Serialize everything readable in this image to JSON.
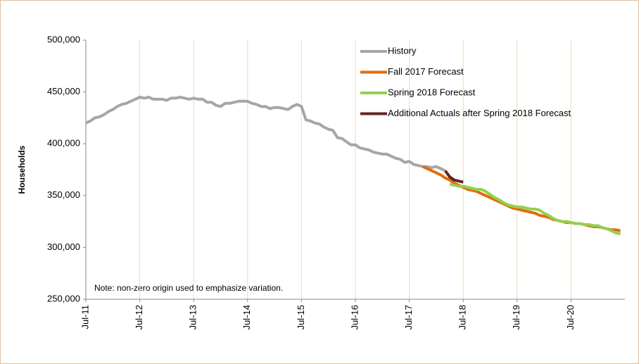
{
  "chart_data": {
    "type": "line",
    "y_label": "Households",
    "note": "Note: non-zero origin used to emphasize variation.",
    "categories": [
      "Jul-11",
      null,
      null,
      null,
      null,
      null,
      null,
      null,
      null,
      null,
      null,
      null,
      "Jul-12",
      null,
      null,
      null,
      null,
      null,
      null,
      null,
      null,
      null,
      null,
      null,
      "Jul-13",
      null,
      null,
      null,
      null,
      null,
      null,
      null,
      null,
      null,
      null,
      null,
      "Jul-14",
      null,
      null,
      null,
      null,
      null,
      null,
      null,
      null,
      null,
      null,
      null,
      "Jul-15",
      null,
      null,
      null,
      null,
      null,
      null,
      null,
      null,
      null,
      null,
      null,
      "Jul-16",
      null,
      null,
      null,
      null,
      null,
      null,
      null,
      null,
      null,
      null,
      null,
      "Jul-17",
      null,
      null,
      null,
      null,
      null,
      null,
      null,
      null,
      null,
      null,
      null,
      "Jul-18",
      null,
      null,
      null,
      null,
      null,
      null,
      null,
      null,
      null,
      null,
      null,
      "Jul-19",
      null,
      null,
      null,
      null,
      null,
      null,
      null,
      null,
      null,
      null,
      null,
      "Jul-20",
      null,
      null,
      null,
      null,
      null,
      null,
      null,
      null,
      null,
      null,
      null
    ],
    "series": [
      {
        "name": "History",
        "color": "#a6a6a6",
        "values": [
          420000,
          422000,
          425000,
          426000,
          428000,
          431000,
          433000,
          436000,
          438000,
          439000,
          441000,
          443000,
          445000,
          444000,
          445000,
          443000,
          443000,
          443000,
          442000,
          444000,
          444000,
          445000,
          444000,
          443000,
          444000,
          443000,
          443000,
          440000,
          440000,
          437000,
          436000,
          439000,
          439000,
          440000,
          441000,
          441000,
          441000,
          439000,
          438000,
          436000,
          436000,
          434000,
          435000,
          435000,
          434000,
          433000,
          436000,
          438000,
          436000,
          423000,
          422000,
          420000,
          419000,
          416000,
          414000,
          413000,
          406000,
          405000,
          402000,
          399000,
          399000,
          396000,
          395000,
          394000,
          392000,
          391000,
          390000,
          390000,
          388000,
          386000,
          385000,
          382000,
          383000,
          380000,
          379000,
          378000,
          378000,
          377000,
          378000,
          376000,
          374000,
          null,
          null,
          null,
          null,
          null,
          null,
          null,
          null,
          null,
          null,
          null,
          null,
          null,
          null,
          null,
          null,
          null,
          null,
          null,
          null,
          null,
          null,
          null,
          null,
          null,
          null,
          null,
          null,
          null,
          null,
          null,
          null,
          null,
          null,
          null,
          null,
          null,
          null,
          null
        ]
      },
      {
        "name": "Fall 2017 Forecast",
        "color": "#e36c0a",
        "values": [
          null,
          null,
          null,
          null,
          null,
          null,
          null,
          null,
          null,
          null,
          null,
          null,
          null,
          null,
          null,
          null,
          null,
          null,
          null,
          null,
          null,
          null,
          null,
          null,
          null,
          null,
          null,
          null,
          null,
          null,
          null,
          null,
          null,
          null,
          null,
          null,
          null,
          null,
          null,
          null,
          null,
          null,
          null,
          null,
          null,
          null,
          null,
          null,
          null,
          null,
          null,
          null,
          null,
          null,
          null,
          null,
          null,
          null,
          null,
          null,
          null,
          null,
          null,
          null,
          null,
          null,
          null,
          null,
          null,
          null,
          null,
          null,
          null,
          null,
          null,
          378000,
          376000,
          374000,
          372000,
          370000,
          367000,
          365000,
          362000,
          360000,
          358000,
          356000,
          355000,
          354000,
          352000,
          350000,
          348000,
          346000,
          344000,
          342000,
          340000,
          338000,
          337000,
          336000,
          335000,
          334000,
          333000,
          331000,
          330000,
          329000,
          327000,
          326000,
          325000,
          324000,
          324000,
          323000,
          323000,
          322000,
          321000,
          320000,
          320000,
          319000,
          318000,
          317000,
          317000,
          316000
        ]
      },
      {
        "name": "Spring 2018 Forecast",
        "color": "#92d050",
        "values": [
          null,
          null,
          null,
          null,
          null,
          null,
          null,
          null,
          null,
          null,
          null,
          null,
          null,
          null,
          null,
          null,
          null,
          null,
          null,
          null,
          null,
          null,
          null,
          null,
          null,
          null,
          null,
          null,
          null,
          null,
          null,
          null,
          null,
          null,
          null,
          null,
          null,
          null,
          null,
          null,
          null,
          null,
          null,
          null,
          null,
          null,
          null,
          null,
          null,
          null,
          null,
          null,
          null,
          null,
          null,
          null,
          null,
          null,
          null,
          null,
          null,
          null,
          null,
          null,
          null,
          null,
          null,
          null,
          null,
          null,
          null,
          null,
          null,
          null,
          null,
          null,
          null,
          null,
          null,
          null,
          null,
          361000,
          360000,
          359000,
          359000,
          358000,
          357000,
          356000,
          356000,
          354000,
          351000,
          348000,
          346000,
          343000,
          341000,
          340000,
          339000,
          339000,
          338000,
          337000,
          337000,
          336000,
          333000,
          331000,
          328000,
          326000,
          325000,
          325000,
          324000,
          323000,
          323000,
          322000,
          322000,
          321000,
          321000,
          319000,
          318000,
          316000,
          314000,
          313000
        ]
      },
      {
        "name": "Additional Actuals after Spring 2018 Forecast",
        "color": "#632523",
        "values": [
          null,
          null,
          null,
          null,
          null,
          null,
          null,
          null,
          null,
          null,
          null,
          null,
          null,
          null,
          null,
          null,
          null,
          null,
          null,
          null,
          null,
          null,
          null,
          null,
          null,
          null,
          null,
          null,
          null,
          null,
          null,
          null,
          null,
          null,
          null,
          null,
          null,
          null,
          null,
          null,
          null,
          null,
          null,
          null,
          null,
          null,
          null,
          null,
          null,
          null,
          null,
          null,
          null,
          null,
          null,
          null,
          null,
          null,
          null,
          null,
          null,
          null,
          null,
          null,
          null,
          null,
          null,
          null,
          null,
          null,
          null,
          null,
          null,
          null,
          null,
          null,
          null,
          null,
          null,
          null,
          374000,
          368000,
          365000,
          364000,
          363000,
          null,
          null,
          null,
          null,
          null,
          null,
          null,
          null,
          null,
          null,
          null,
          null,
          null,
          null,
          null,
          null,
          null,
          null,
          null,
          null,
          null,
          null,
          null,
          null,
          null,
          null,
          null,
          null,
          null,
          null,
          null,
          null,
          null,
          null,
          null
        ]
      }
    ],
    "ylim": [
      250000,
      500000
    ],
    "yticks": [
      {
        "value": 250000,
        "label": "250,000"
      },
      {
        "value": 300000,
        "label": "300,000"
      },
      {
        "value": 350000,
        "label": "350,000"
      },
      {
        "value": 400000,
        "label": "400,000"
      },
      {
        "value": 450000,
        "label": "450,000"
      },
      {
        "value": 500000,
        "label": "500,000"
      }
    ],
    "grid": "x",
    "legend": "top-right"
  }
}
